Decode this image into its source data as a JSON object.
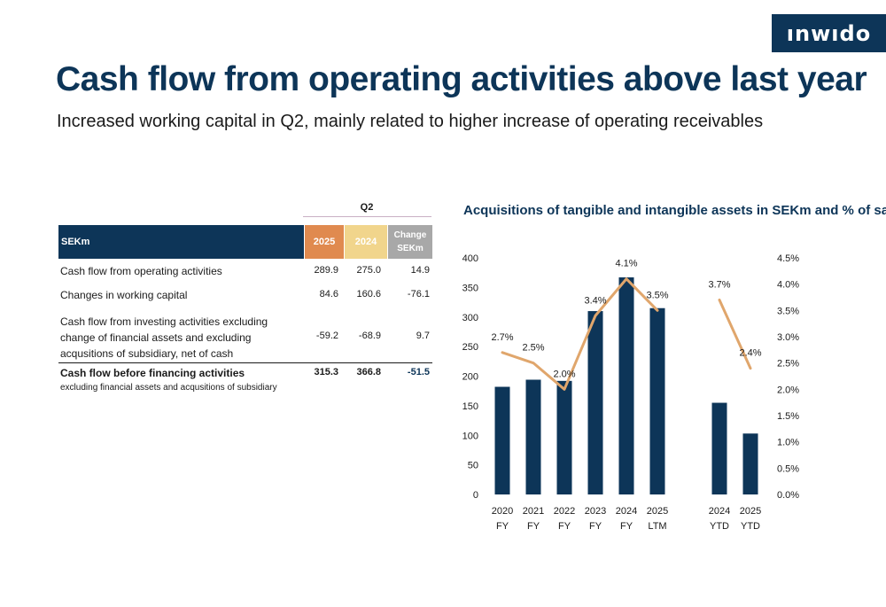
{
  "logo": "ınwıdo",
  "title": "Cash flow from operating activities above last year",
  "subtitle": "Increased working capital in Q2, mainly related to higher increase of operating receivables",
  "table": {
    "period": "Q2",
    "header": {
      "label": "SEKm",
      "col_2025": "2025",
      "col_2024": "2024",
      "col_change_1": "Change",
      "col_change_2": "SEKm"
    },
    "rows": [
      {
        "label": "Cash flow from operating activities",
        "v2025": "289.9",
        "v2024": "275.0",
        "change": "14.9"
      },
      {
        "label": "Changes in working capital",
        "v2025": "84.6",
        "v2024": "160.6",
        "change": "-76.1"
      },
      {
        "label": "Cash flow from investing activities excluding change of financial assets and excluding acqusitions of subsidiary, net of cash",
        "v2025": "-59.2",
        "v2024": "-68.9",
        "change": "9.7"
      },
      {
        "label": "Cash flow before financing activities",
        "v2025": "315.3",
        "v2024": "366.8",
        "change": "-51.5"
      }
    ],
    "note": "excluding financial assets and acqusitions of subsidiary"
  },
  "chart_data": {
    "type": "bar",
    "title": "Acquisitions of tangible and intangible assets in SEKm and % of sales",
    "categories": [
      [
        "2020",
        "FY"
      ],
      [
        "2021",
        "FY"
      ],
      [
        "2022",
        "FY"
      ],
      [
        "2023",
        "FY"
      ],
      [
        "2024",
        "FY"
      ],
      [
        "2025",
        "LTM"
      ],
      [
        "2024",
        "YTD"
      ],
      [
        "2025",
        "YTD"
      ]
    ],
    "series": [
      {
        "values": [
          182,
          194,
          192,
          310,
          367,
          315,
          155,
          103
        ],
        "color": "#0d3558",
        "axis": "left"
      },
      {
        "type": "line",
        "values": [
          2.7,
          2.5,
          2.0,
          3.4,
          4.1,
          3.5,
          3.7,
          2.4
        ],
        "labels": [
          "2.7%",
          "2.5%",
          "2.0%",
          "3.4%",
          "4.1%",
          "3.5%",
          "3.7%",
          "2.4%"
        ],
        "color": "#e0a66c",
        "axis": "right",
        "segments": [
          [
            0,
            5
          ],
          [
            6,
            7
          ]
        ]
      }
    ],
    "ylim": [
      0,
      400
    ],
    "yticks": [
      "0",
      "50",
      "100",
      "150",
      "200",
      "250",
      "300",
      "350",
      "400"
    ],
    "y2lim": [
      0,
      4.5
    ],
    "y2ticks": [
      "0.0%",
      "0.5%",
      "1.0%",
      "1.5%",
      "2.0%",
      "2.5%",
      "3.0%",
      "3.5%",
      "4.0%",
      "4.5%"
    ],
    "grid": false,
    "legend": "none"
  }
}
